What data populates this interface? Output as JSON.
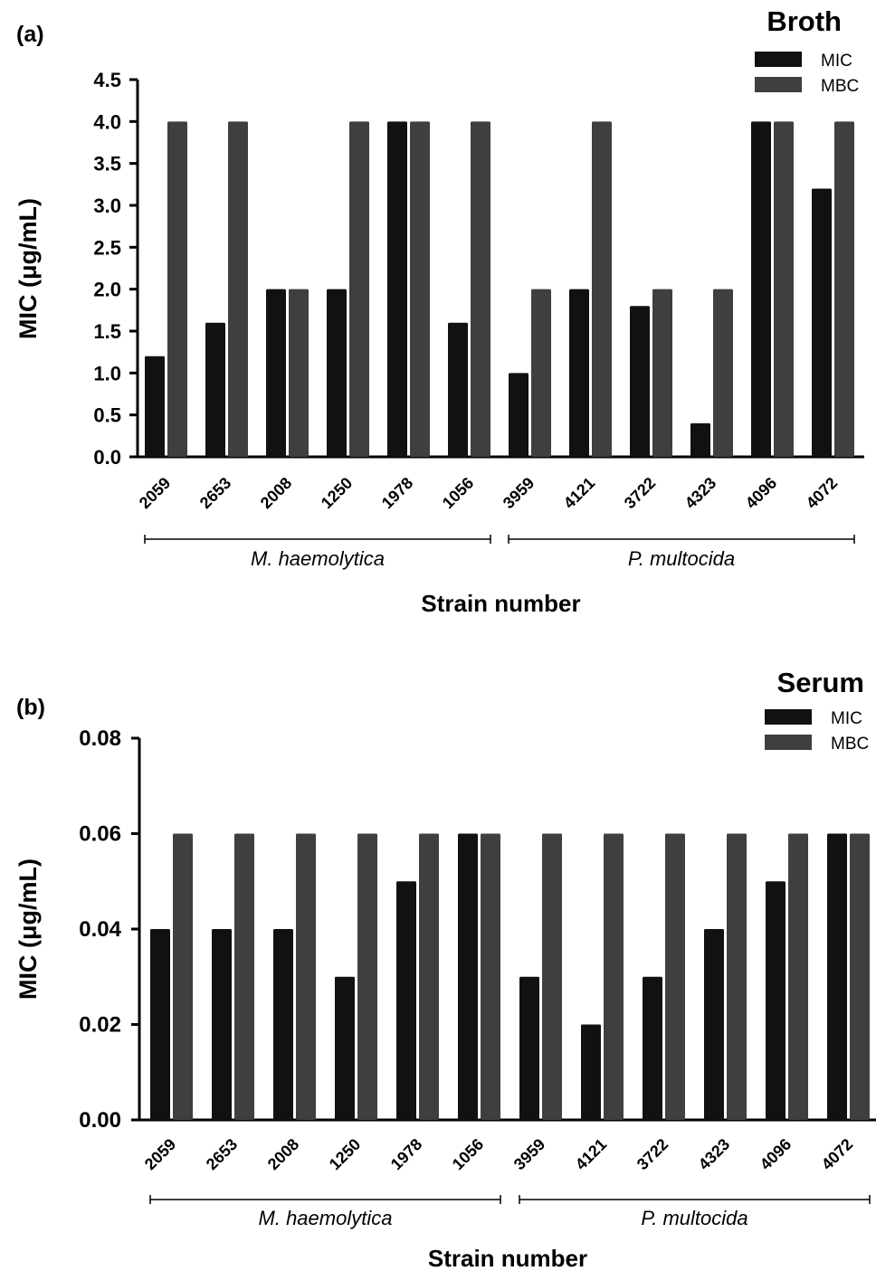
{
  "chart_data": [
    {
      "panel_label": "(a)",
      "title": "Broth",
      "type": "bar",
      "ylabel": "MIC (μg/mL)",
      "xlabel": "Strain number",
      "ylim": [
        0,
        4.5
      ],
      "yticks": [
        "0.0",
        "0.5",
        "1.0",
        "1.5",
        "2.0",
        "2.5",
        "3.0",
        "3.5",
        "4.0",
        "4.5"
      ],
      "categories": [
        "2059",
        "2653",
        "2008",
        "1250",
        "1978",
        "1056",
        "3959",
        "4121",
        "3722",
        "4323",
        "4096",
        "4072"
      ],
      "groups": [
        {
          "name": "M. haemolytica",
          "from": 0,
          "to": 5
        },
        {
          "name": "P. multocida",
          "from": 6,
          "to": 11
        }
      ],
      "legend_position": "top-right",
      "series": [
        {
          "name": "MIC",
          "color": "#111111",
          "values": [
            1.2,
            1.6,
            2.0,
            2.0,
            4.0,
            1.6,
            1.0,
            2.0,
            1.8,
            0.4,
            4.0,
            3.2
          ]
        },
        {
          "name": "MBC",
          "color": "#3f3f3f",
          "values": [
            4.0,
            4.0,
            2.0,
            4.0,
            4.0,
            4.0,
            2.0,
            4.0,
            2.0,
            2.0,
            4.0,
            4.0
          ]
        }
      ]
    },
    {
      "panel_label": "(b)",
      "title": "Serum",
      "type": "bar",
      "ylabel": "MIC (μg/mL)",
      "xlabel": "Strain number",
      "ylim": [
        0,
        0.08
      ],
      "yticks": [
        "0.00",
        "0.02",
        "0.04",
        "0.06",
        "0.08"
      ],
      "categories": [
        "2059",
        "2653",
        "2008",
        "1250",
        "1978",
        "1056",
        "3959",
        "4121",
        "3722",
        "4323",
        "4096",
        "4072"
      ],
      "groups": [
        {
          "name": "M. haemolytica",
          "from": 0,
          "to": 5
        },
        {
          "name": "P. multocida",
          "from": 6,
          "to": 11
        }
      ],
      "legend_position": "top-right",
      "series": [
        {
          "name": "MIC",
          "color": "#111111",
          "values": [
            0.04,
            0.04,
            0.04,
            0.03,
            0.05,
            0.06,
            0.03,
            0.02,
            0.03,
            0.04,
            0.05,
            0.06
          ]
        },
        {
          "name": "MBC",
          "color": "#3f3f3f",
          "values": [
            0.06,
            0.06,
            0.06,
            0.06,
            0.06,
            0.06,
            0.06,
            0.06,
            0.06,
            0.06,
            0.06,
            0.06
          ]
        }
      ]
    }
  ]
}
